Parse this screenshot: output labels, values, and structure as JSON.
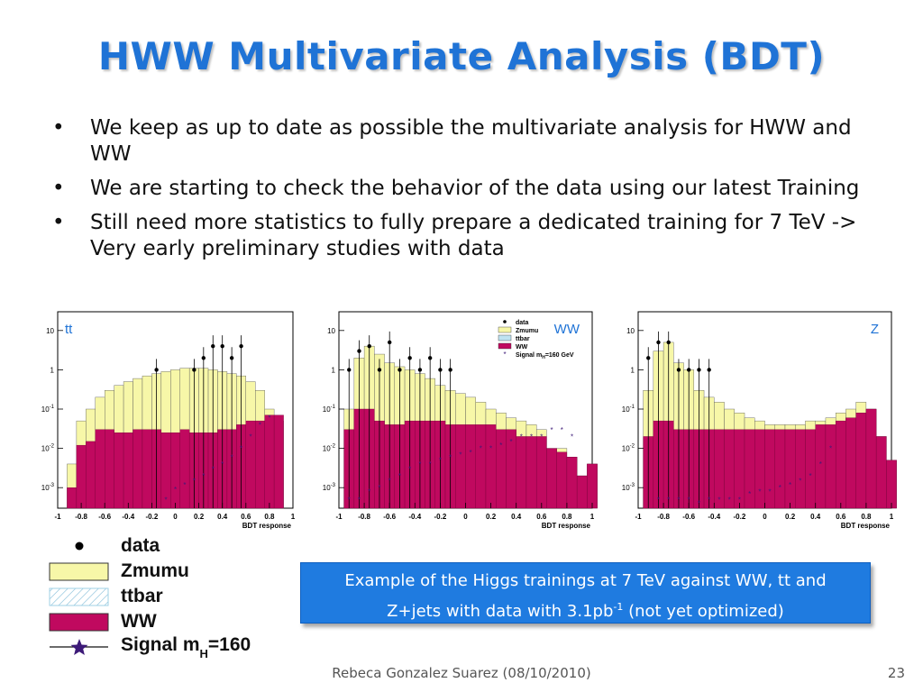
{
  "slide": {
    "title": "HWW Multivariate Analysis (BDT)",
    "bullets": [
      "We keep as up to date as possible the multivariate analysis for HWW and WW",
      "We are starting to check the behavior of the data using our latest Training",
      "Still need more statistics to fully prepare a dedicated training for 7 TeV -> Very early preliminary studies with data"
    ],
    "callout_line1": "Example of the Higgs trainings at 7 TeV against WW, tt and",
    "callout_line2_prefix": "Z+jets with data with 3.1pb",
    "callout_sup": "-1",
    "callout_line2_suffix": " (not yet optimized)",
    "footer": "Rebeca Gonzalez Suarez  (08/10/2010)",
    "page_number": "23"
  },
  "legend": {
    "items": [
      {
        "label": "data",
        "marker": "dot"
      },
      {
        "label": "Zmumu",
        "marker": "yellow-box"
      },
      {
        "label": "ttbar",
        "marker": "hatched-box"
      },
      {
        "label": "WW",
        "marker": "magenta-box"
      },
      {
        "label_prefix": "Signal m",
        "label_sub": "H",
        "label_suffix": "=160",
        "marker": "star-line"
      }
    ]
  },
  "colors": {
    "title": "#1f73d6",
    "zmumu": "#f7f7a8",
    "ttbar": "#bfe3f2",
    "ww": "#c0095f",
    "signal": "#3d1a78",
    "panel_label": "#1f73d6",
    "callout_bg": "#1f7be0"
  },
  "chart_data": [
    {
      "type": "bar",
      "panel_label": "tt",
      "xlabel": "BDT response",
      "ylabel": "",
      "log_y": true,
      "xlim": [
        -1,
        1
      ],
      "ylim": [
        0.0003,
        30
      ],
      "x_ticks": [
        "-1",
        "-0.8",
        "-0.6",
        "-0.4",
        "-0.2",
        "0",
        "0.2",
        "0.4",
        "0.6",
        "0.8",
        "1"
      ],
      "y_ticks": [
        "10^{-3}",
        "10^{-2}",
        "10^{-1}",
        "1",
        "10"
      ],
      "bin_edges": [
        -0.92,
        -0.84,
        -0.76,
        -0.68,
        -0.6,
        -0.52,
        -0.44,
        -0.36,
        -0.28,
        -0.2,
        -0.12,
        -0.04,
        0.04,
        0.12,
        0.2,
        0.28,
        0.36,
        0.44,
        0.52,
        0.6,
        0.68,
        0.76,
        0.84,
        0.92
      ],
      "series": [
        {
          "name": "WW",
          "values": [
            0.001,
            0.012,
            0.015,
            0.03,
            0.03,
            0.025,
            0.025,
            0.03,
            0.03,
            0.03,
            0.025,
            0.025,
            0.03,
            0.025,
            0.025,
            0.025,
            0.03,
            0.03,
            0.04,
            0.05,
            0.05,
            0.07,
            0.07
          ]
        },
        {
          "name": "Zmumu",
          "values": [
            0.004,
            0.05,
            0.1,
            0.2,
            0.3,
            0.4,
            0.5,
            0.6,
            0.7,
            0.8,
            0.9,
            1.0,
            1.1,
            1.1,
            1.1,
            1.0,
            0.9,
            0.8,
            0.7,
            0.5,
            0.3,
            0.1,
            0.05
          ]
        },
        {
          "name": "data",
          "x": [
            -0.16,
            0.16,
            0.24,
            0.32,
            0.4,
            0.48,
            0.56
          ],
          "values": [
            1.0,
            1.0,
            2.0,
            4.0,
            4.0,
            2.0,
            4.0
          ]
        },
        {
          "name": "Signal mH=160",
          "x": [
            -0.08,
            0.0,
            0.08,
            0.16,
            0.24,
            0.32,
            0.4,
            0.48,
            0.56,
            0.64,
            0.72,
            0.8
          ],
          "values": [
            0.0005,
            0.0009,
            0.0012,
            0.0015,
            0.002,
            0.003,
            0.004,
            0.006,
            0.01,
            0.02,
            0.04,
            0.06
          ]
        }
      ]
    },
    {
      "type": "bar",
      "panel_label": "WW",
      "xlabel": "BDT response",
      "ylabel": "",
      "log_y": true,
      "xlim": [
        -1,
        1
      ],
      "ylim": [
        0.0003,
        30
      ],
      "x_ticks": [
        "-1",
        "-0.8",
        "-0.6",
        "-0.4",
        "-0.2",
        "0",
        "0.2",
        "0.4",
        "0.6",
        "0.8",
        "1"
      ],
      "y_ticks": [
        "10^{-3}",
        "10^{-2}",
        "10^{-1}",
        "1",
        "10"
      ],
      "bin_edges": [
        -0.96,
        -0.88,
        -0.8,
        -0.72,
        -0.64,
        -0.56,
        -0.48,
        -0.4,
        -0.32,
        -0.24,
        -0.16,
        -0.08,
        0.0,
        0.08,
        0.16,
        0.24,
        0.32,
        0.4,
        0.48,
        0.56,
        0.64,
        0.72,
        0.8,
        0.88,
        0.96
      ],
      "series": [
        {
          "name": "WW",
          "values": [
            0.03,
            0.1,
            0.1,
            0.05,
            0.04,
            0.04,
            0.05,
            0.05,
            0.05,
            0.05,
            0.04,
            0.04,
            0.04,
            0.04,
            0.04,
            0.03,
            0.03,
            0.02,
            0.02,
            0.02,
            0.01,
            0.008,
            0.006,
            0.002,
            0.004
          ]
        },
        {
          "name": "Zmumu",
          "values": [
            0.1,
            2.0,
            4.0,
            2.5,
            1.5,
            1.2,
            1.0,
            0.8,
            0.6,
            0.4,
            0.3,
            0.25,
            0.2,
            0.15,
            0.1,
            0.08,
            0.06,
            0.05,
            0.04,
            0.03,
            0.01,
            0.01,
            0.006,
            0.002,
            0.004
          ]
        },
        {
          "name": "data",
          "x": [
            -0.92,
            -0.84,
            -0.76,
            -0.68,
            -0.6,
            -0.52,
            -0.44,
            -0.36,
            -0.28,
            -0.2,
            -0.12
          ],
          "values": [
            1.0,
            3.0,
            4.0,
            1.0,
            5.0,
            1.0,
            2.0,
            1.0,
            2.0,
            1.0,
            1.0
          ]
        },
        {
          "name": "Signal mH=160",
          "x": [
            -0.92,
            -0.84,
            -0.76,
            -0.68,
            -0.6,
            -0.52,
            -0.44,
            -0.36,
            -0.28,
            -0.2,
            -0.12,
            -0.04,
            0.04,
            0.12,
            0.2,
            0.28,
            0.36,
            0.44,
            0.52,
            0.6,
            0.68,
            0.76,
            0.84
          ],
          "values": [
            0.0005,
            0.0005,
            0.0008,
            0.001,
            0.0015,
            0.002,
            0.003,
            0.004,
            0.004,
            0.005,
            0.006,
            0.007,
            0.008,
            0.01,
            0.01,
            0.012,
            0.015,
            0.02,
            0.02,
            0.02,
            0.03,
            0.03,
            0.02
          ]
        }
      ]
    },
    {
      "type": "bar",
      "panel_label": "Z",
      "xlabel": "BDT response",
      "ylabel": "",
      "log_y": true,
      "xlim": [
        -1,
        1
      ],
      "ylim": [
        0.0003,
        30
      ],
      "x_ticks": [
        "-1",
        "-0.8",
        "-0.6",
        "-0.4",
        "-0.2",
        "0",
        "0.2",
        "0.4",
        "0.6",
        "0.8",
        "1"
      ],
      "y_ticks": [
        "10^{-3}",
        "10^{-2}",
        "10^{-1}",
        "1",
        "10"
      ],
      "bin_edges": [
        -0.96,
        -0.88,
        -0.8,
        -0.72,
        -0.64,
        -0.56,
        -0.48,
        -0.4,
        -0.32,
        -0.24,
        -0.16,
        -0.08,
        0.0,
        0.08,
        0.16,
        0.24,
        0.32,
        0.4,
        0.48,
        0.56,
        0.64,
        0.72,
        0.8,
        0.88,
        0.96
      ],
      "series": [
        {
          "name": "WW",
          "values": [
            0.02,
            0.05,
            0.05,
            0.03,
            0.03,
            0.03,
            0.03,
            0.03,
            0.03,
            0.03,
            0.03,
            0.03,
            0.03,
            0.03,
            0.03,
            0.03,
            0.03,
            0.04,
            0.04,
            0.05,
            0.06,
            0.08,
            0.1,
            0.02,
            0.005
          ]
        },
        {
          "name": "Zmumu",
          "values": [
            0.3,
            3.0,
            5.0,
            1.5,
            1.0,
            0.3,
            0.2,
            0.15,
            0.1,
            0.08,
            0.06,
            0.05,
            0.04,
            0.04,
            0.04,
            0.04,
            0.05,
            0.05,
            0.06,
            0.08,
            0.1,
            0.15,
            0.1,
            0.02,
            0.005
          ]
        },
        {
          "name": "data",
          "x": [
            -0.92,
            -0.84,
            -0.76,
            -0.68,
            -0.6,
            -0.52,
            -0.44
          ],
          "values": [
            2.0,
            5.0,
            5.0,
            1.0,
            1.0,
            1.0,
            1.0
          ]
        },
        {
          "name": "Signal mH=160",
          "x": [
            -0.84,
            -0.76,
            -0.68,
            -0.6,
            -0.52,
            -0.44,
            -0.36,
            -0.28,
            -0.2,
            -0.12,
            -0.04,
            0.04,
            0.12,
            0.2,
            0.28,
            0.36,
            0.44,
            0.52
          ],
          "values": [
            0.0005,
            0.0005,
            0.0005,
            0.0005,
            0.0004,
            0.0005,
            0.0005,
            0.0005,
            0.0005,
            0.0007,
            0.0008,
            0.0008,
            0.001,
            0.0012,
            0.0015,
            0.002,
            0.004,
            0.01
          ]
        }
      ]
    }
  ]
}
